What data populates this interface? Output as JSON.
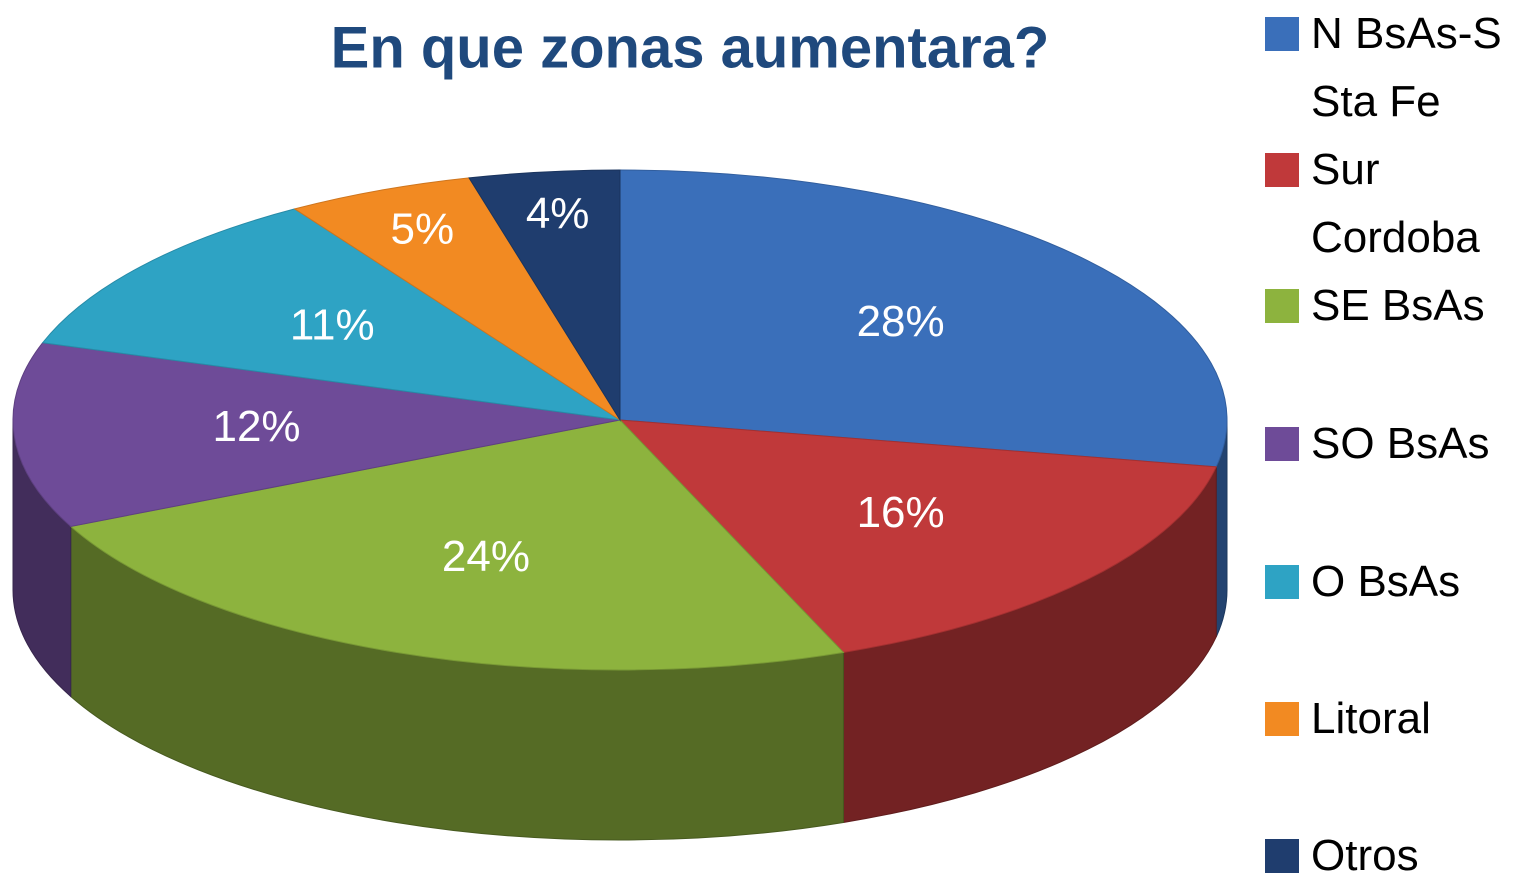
{
  "chart_data": {
    "type": "pie",
    "title": "En que zonas aumentara?",
    "categories": [
      "N BsAs-S Sta Fe",
      "Sur Cordoba",
      "SE BsAs",
      "SO BsAs",
      "O BsAs",
      "Litoral",
      "Otros"
    ],
    "values": [
      28,
      16,
      24,
      12,
      11,
      5,
      4
    ],
    "value_labels": [
      "28%",
      "16%",
      "24%",
      "12%",
      "11%",
      "5%",
      "4%"
    ],
    "colors": [
      "#3a6fba",
      "#c0393a",
      "#8db33e",
      "#6e4b98",
      "#2ea3c4",
      "#f28a22",
      "#1f3d6e"
    ],
    "legend": "right"
  }
}
